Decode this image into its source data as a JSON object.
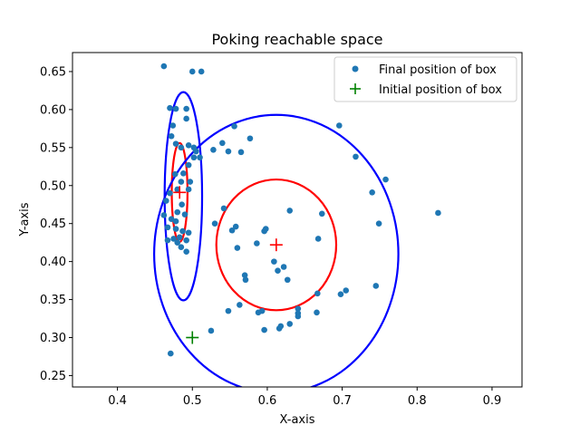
{
  "chart_data": {
    "type": "scatter",
    "title": "Poking reachable space",
    "xlabel": "X-axis",
    "ylabel": "Y-axis",
    "xlim": [
      0.34,
      0.94
    ],
    "ylim": [
      0.235,
      0.675
    ],
    "xticks": [
      0.4,
      0.5,
      0.6,
      0.7,
      0.8,
      0.9
    ],
    "yticks": [
      0.25,
      0.3,
      0.35,
      0.4,
      0.45,
      0.5,
      0.55,
      0.6,
      0.65
    ],
    "xtick_labels": [
      "0.4",
      "0.5",
      "0.6",
      "0.7",
      "0.8",
      "0.9"
    ],
    "ytick_labels": [
      "0.25",
      "0.30",
      "0.35",
      "0.40",
      "0.45",
      "0.50",
      "0.55",
      "0.60",
      "0.65"
    ],
    "grid": false,
    "legend": {
      "position": "top-right",
      "entries": [
        {
          "label": "Final position of box",
          "marker": "dot",
          "color": "#1f77b4"
        },
        {
          "label": "Initial position of box",
          "marker": "plus",
          "color": "#008000"
        }
      ]
    },
    "series": [
      {
        "marker": "dot",
        "color": "#1f77b4",
        "points": [
          [
            0.462,
            0.657
          ],
          [
            0.5,
            0.65
          ],
          [
            0.512,
            0.65
          ],
          [
            0.47,
            0.602
          ],
          [
            0.478,
            0.601
          ],
          [
            0.492,
            0.601
          ],
          [
            0.492,
            0.588
          ],
          [
            0.474,
            0.579
          ],
          [
            0.472,
            0.565
          ],
          [
            0.478,
            0.555
          ],
          [
            0.485,
            0.55
          ],
          [
            0.495,
            0.553
          ],
          [
            0.502,
            0.55
          ],
          [
            0.505,
            0.545
          ],
          [
            0.502,
            0.537
          ],
          [
            0.51,
            0.537
          ],
          [
            0.488,
            0.516
          ],
          [
            0.495,
            0.527
          ],
          [
            0.477,
            0.515
          ],
          [
            0.485,
            0.505
          ],
          [
            0.497,
            0.505
          ],
          [
            0.495,
            0.495
          ],
          [
            0.48,
            0.495
          ],
          [
            0.47,
            0.49
          ],
          [
            0.465,
            0.48
          ],
          [
            0.486,
            0.475
          ],
          [
            0.48,
            0.465
          ],
          [
            0.49,
            0.462
          ],
          [
            0.462,
            0.461
          ],
          [
            0.472,
            0.456
          ],
          [
            0.478,
            0.453
          ],
          [
            0.467,
            0.445
          ],
          [
            0.478,
            0.443
          ],
          [
            0.487,
            0.44
          ],
          [
            0.495,
            0.438
          ],
          [
            0.483,
            0.432
          ],
          [
            0.475,
            0.43
          ],
          [
            0.467,
            0.428
          ],
          [
            0.492,
            0.428
          ],
          [
            0.48,
            0.425
          ],
          [
            0.485,
            0.419
          ],
          [
            0.492,
            0.413
          ],
          [
            0.471,
            0.279
          ],
          [
            0.525,
            0.309
          ],
          [
            0.528,
            0.547
          ],
          [
            0.54,
            0.556
          ],
          [
            0.556,
            0.578
          ],
          [
            0.548,
            0.545
          ],
          [
            0.565,
            0.544
          ],
          [
            0.577,
            0.562
          ],
          [
            0.542,
            0.47
          ],
          [
            0.53,
            0.45
          ],
          [
            0.553,
            0.441
          ],
          [
            0.558,
            0.446
          ],
          [
            0.56,
            0.418
          ],
          [
            0.57,
            0.382
          ],
          [
            0.571,
            0.376
          ],
          [
            0.548,
            0.335
          ],
          [
            0.563,
            0.343
          ],
          [
            0.588,
            0.333
          ],
          [
            0.593,
            0.335
          ],
          [
            0.596,
            0.31
          ],
          [
            0.586,
            0.424
          ],
          [
            0.598,
            0.443
          ],
          [
            0.596,
            0.44
          ],
          [
            0.63,
            0.467
          ],
          [
            0.609,
            0.4
          ],
          [
            0.614,
            0.388
          ],
          [
            0.622,
            0.393
          ],
          [
            0.627,
            0.376
          ],
          [
            0.618,
            0.315
          ],
          [
            0.616,
            0.312
          ],
          [
            0.63,
            0.318
          ],
          [
            0.641,
            0.338
          ],
          [
            0.641,
            0.332
          ],
          [
            0.641,
            0.328
          ],
          [
            0.667,
            0.358
          ],
          [
            0.666,
            0.333
          ],
          [
            0.668,
            0.43
          ],
          [
            0.673,
            0.463
          ],
          [
            0.696,
            0.579
          ],
          [
            0.718,
            0.538
          ],
          [
            0.698,
            0.357
          ],
          [
            0.705,
            0.362
          ],
          [
            0.74,
            0.491
          ],
          [
            0.745,
            0.368
          ],
          [
            0.749,
            0.45
          ],
          [
            0.758,
            0.508
          ],
          [
            0.828,
            0.464
          ]
        ]
      },
      {
        "marker": "plus",
        "color": "#008000",
        "points": [
          [
            0.5,
            0.3
          ]
        ]
      },
      {
        "marker": "plus",
        "color": "#ff0000",
        "points": [
          [
            0.483,
            0.491
          ],
          [
            0.612,
            0.422
          ]
        ]
      }
    ],
    "ellipses": [
      {
        "cx": 0.612,
        "cy": 0.422,
        "rx": 0.08,
        "ry": 0.086,
        "color": "#ff0000"
      },
      {
        "cx": 0.483,
        "cy": 0.491,
        "rx": 0.0105,
        "ry": 0.065,
        "color": "#ff0000"
      },
      {
        "cx": 0.612,
        "cy": 0.41,
        "rx": 0.163,
        "ry": 0.183,
        "color": "#0000ff"
      },
      {
        "cx": 0.488,
        "cy": 0.486,
        "rx": 0.025,
        "ry": 0.137,
        "color": "#0000ff"
      }
    ]
  }
}
